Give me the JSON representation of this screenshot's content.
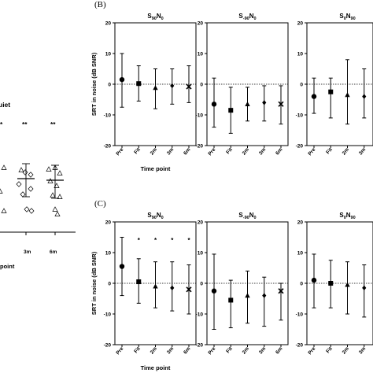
{
  "colors": {
    "ink": "#000000",
    "background": "#ffffff"
  },
  "left_panel": {
    "title_fragment": "uiet",
    "stars": [
      "*",
      "**",
      "**"
    ],
    "ticks": [
      "3m",
      "6m"
    ],
    "xlabel_fragment": "point"
  },
  "chart_data": [
    {
      "panel": "(B)",
      "type": "scatter",
      "title": "S",
      "title_sub1": "90",
      "title_mid": "N",
      "title_sub2": "0",
      "categories": [
        "Pre",
        "Fit",
        "2m",
        "3m",
        "6m"
      ],
      "markers": [
        "circle",
        "square",
        "triangle",
        "diamond",
        "cross"
      ],
      "values": [
        1.5,
        0.2,
        -1.2,
        -0.5,
        -0.8
      ],
      "err_low": [
        -7.5,
        -5.5,
        -8,
        -6.5,
        -6
      ],
      "err_high": [
        10,
        6,
        5,
        5,
        6
      ],
      "stars": [],
      "ylim": [
        -20,
        20
      ],
      "yticks": [
        -20,
        -10,
        0,
        10,
        20
      ],
      "refline": 0,
      "ylabel": "SRT in noise (dB SNR)",
      "xlabel": "Time point"
    },
    {
      "panel": "",
      "type": "scatter",
      "title": "S",
      "title_sub1": "-90",
      "title_mid": "N",
      "title_sub2": "0",
      "categories": [
        "Pre",
        "Fit",
        "2m",
        "3m",
        "6m"
      ],
      "markers": [
        "circle",
        "square",
        "triangle",
        "diamond",
        "cross"
      ],
      "values": [
        -6.5,
        -8.5,
        -6.5,
        -6,
        -6.5
      ],
      "err_low": [
        -14,
        -16,
        -12,
        -12,
        -13
      ],
      "err_high": [
        2,
        -1,
        -1,
        -0.5,
        -0.5
      ],
      "stars": [],
      "ylim": [
        -20,
        20
      ],
      "yticks": [
        -20,
        -10,
        0,
        10,
        20
      ],
      "refline": 0,
      "ylabel": "",
      "xlabel": ""
    },
    {
      "panel": "",
      "type": "scatter",
      "title": "S",
      "title_sub1": "0",
      "title_mid": "N",
      "title_sub2": "90",
      "categories": [
        "Pre",
        "Fit",
        "2m",
        "3m",
        "6m"
      ],
      "markers": [
        "circle",
        "square",
        "triangle",
        "diamond",
        "cross"
      ],
      "values": [
        -4,
        -2.5,
        -3.5,
        -4,
        -4
      ],
      "err_low": [
        -9.5,
        -11,
        -13,
        -11,
        -12
      ],
      "err_high": [
        2,
        2,
        8,
        5,
        4
      ],
      "stars": [],
      "ylim": [
        -20,
        20
      ],
      "yticks": [
        -20,
        -10,
        0,
        10,
        20
      ],
      "refline": 0,
      "ylabel": "",
      "xlabel": ""
    },
    {
      "panel": "(C)",
      "type": "scatter",
      "title": "S",
      "title_sub1": "90",
      "title_mid": "N",
      "title_sub2": "0",
      "categories": [
        "Pre",
        "Fit",
        "2m",
        "3m",
        "6m"
      ],
      "markers": [
        "circle",
        "square",
        "triangle",
        "diamond",
        "cross"
      ],
      "values": [
        5.5,
        0.5,
        -1,
        -1.5,
        -2
      ],
      "err_low": [
        -4,
        -6.5,
        -8,
        -9,
        -10
      ],
      "err_high": [
        15,
        8,
        7,
        7,
        6
      ],
      "stars": [
        "",
        "*",
        "*",
        "*",
        "*"
      ],
      "ylim": [
        -20,
        20
      ],
      "yticks": [
        -20,
        -10,
        0,
        10,
        20
      ],
      "refline": 0,
      "ylabel": "SRT in noise (dB SNR)",
      "xlabel": "Time point"
    },
    {
      "panel": "",
      "type": "scatter",
      "title": "S",
      "title_sub1": "-90",
      "title_mid": "N",
      "title_sub2": "0",
      "categories": [
        "Pre",
        "Fit",
        "2m",
        "3m",
        "6m"
      ],
      "markers": [
        "circle",
        "square",
        "triangle",
        "diamond",
        "cross"
      ],
      "values": [
        -2.5,
        -5.5,
        -4,
        -4,
        -2.5
      ],
      "err_low": [
        -15,
        -14.5,
        -13,
        -14,
        -12
      ],
      "err_high": [
        9.5,
        1,
        4,
        2,
        0
      ],
      "stars": [],
      "ylim": [
        -20,
        20
      ],
      "yticks": [
        -20,
        -10,
        0,
        10,
        20
      ],
      "refline": 0,
      "ylabel": "",
      "xlabel": ""
    },
    {
      "panel": "",
      "type": "scatter",
      "title": "S",
      "title_sub1": "0",
      "title_mid": "N",
      "title_sub2": "90",
      "categories": [
        "Pre",
        "Fit",
        "2m",
        "3m",
        "6m"
      ],
      "markers": [
        "circle",
        "square",
        "triangle",
        "diamond",
        "cross"
      ],
      "values": [
        1,
        0,
        -0.5,
        -1.5,
        -1
      ],
      "err_low": [
        -8,
        -8,
        -10,
        -11,
        -9
      ],
      "err_high": [
        9.5,
        7.5,
        7,
        6,
        6
      ],
      "stars": [],
      "ylim": [
        -20,
        20
      ],
      "yticks": [
        -20,
        -10,
        0,
        10,
        20
      ],
      "refline": 0,
      "ylabel": "",
      "xlabel": ""
    }
  ]
}
